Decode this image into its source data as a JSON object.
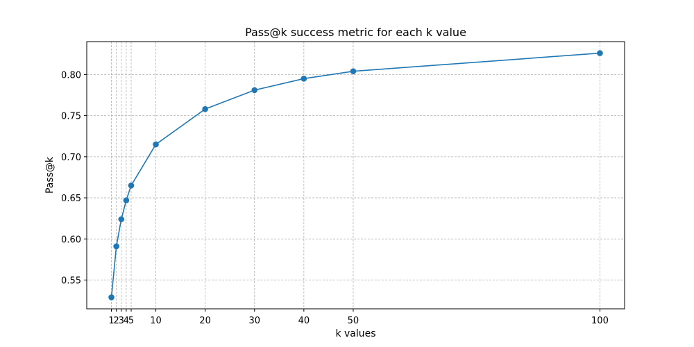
{
  "chart_data": {
    "type": "line",
    "title": "Pass@k success metric for each k value",
    "xlabel": "k values",
    "ylabel": "Pass@k",
    "x": [
      1,
      2,
      3,
      4,
      5,
      10,
      20,
      30,
      40,
      50,
      100
    ],
    "xticks": [
      1,
      2,
      3,
      4,
      5,
      10,
      20,
      30,
      40,
      50,
      100
    ],
    "xtick_labels": [
      "1",
      "2",
      "3",
      "4",
      "5",
      "10",
      "20",
      "30",
      "40",
      "50",
      "100"
    ],
    "yticks": [
      0.55,
      0.6,
      0.65,
      0.7,
      0.75,
      0.8
    ],
    "ytick_labels": [
      "0.55",
      "0.60",
      "0.65",
      "0.70",
      "0.75",
      "0.80"
    ],
    "xlim": [
      -4,
      105
    ],
    "ylim": [
      0.515,
      0.84
    ],
    "grid": true,
    "series": [
      {
        "values": [
          0.529,
          0.591,
          0.624,
          0.647,
          0.665,
          0.715,
          0.758,
          0.781,
          0.795,
          0.804,
          0.826
        ],
        "color": "#1f77b4",
        "marker": "circle"
      }
    ]
  }
}
